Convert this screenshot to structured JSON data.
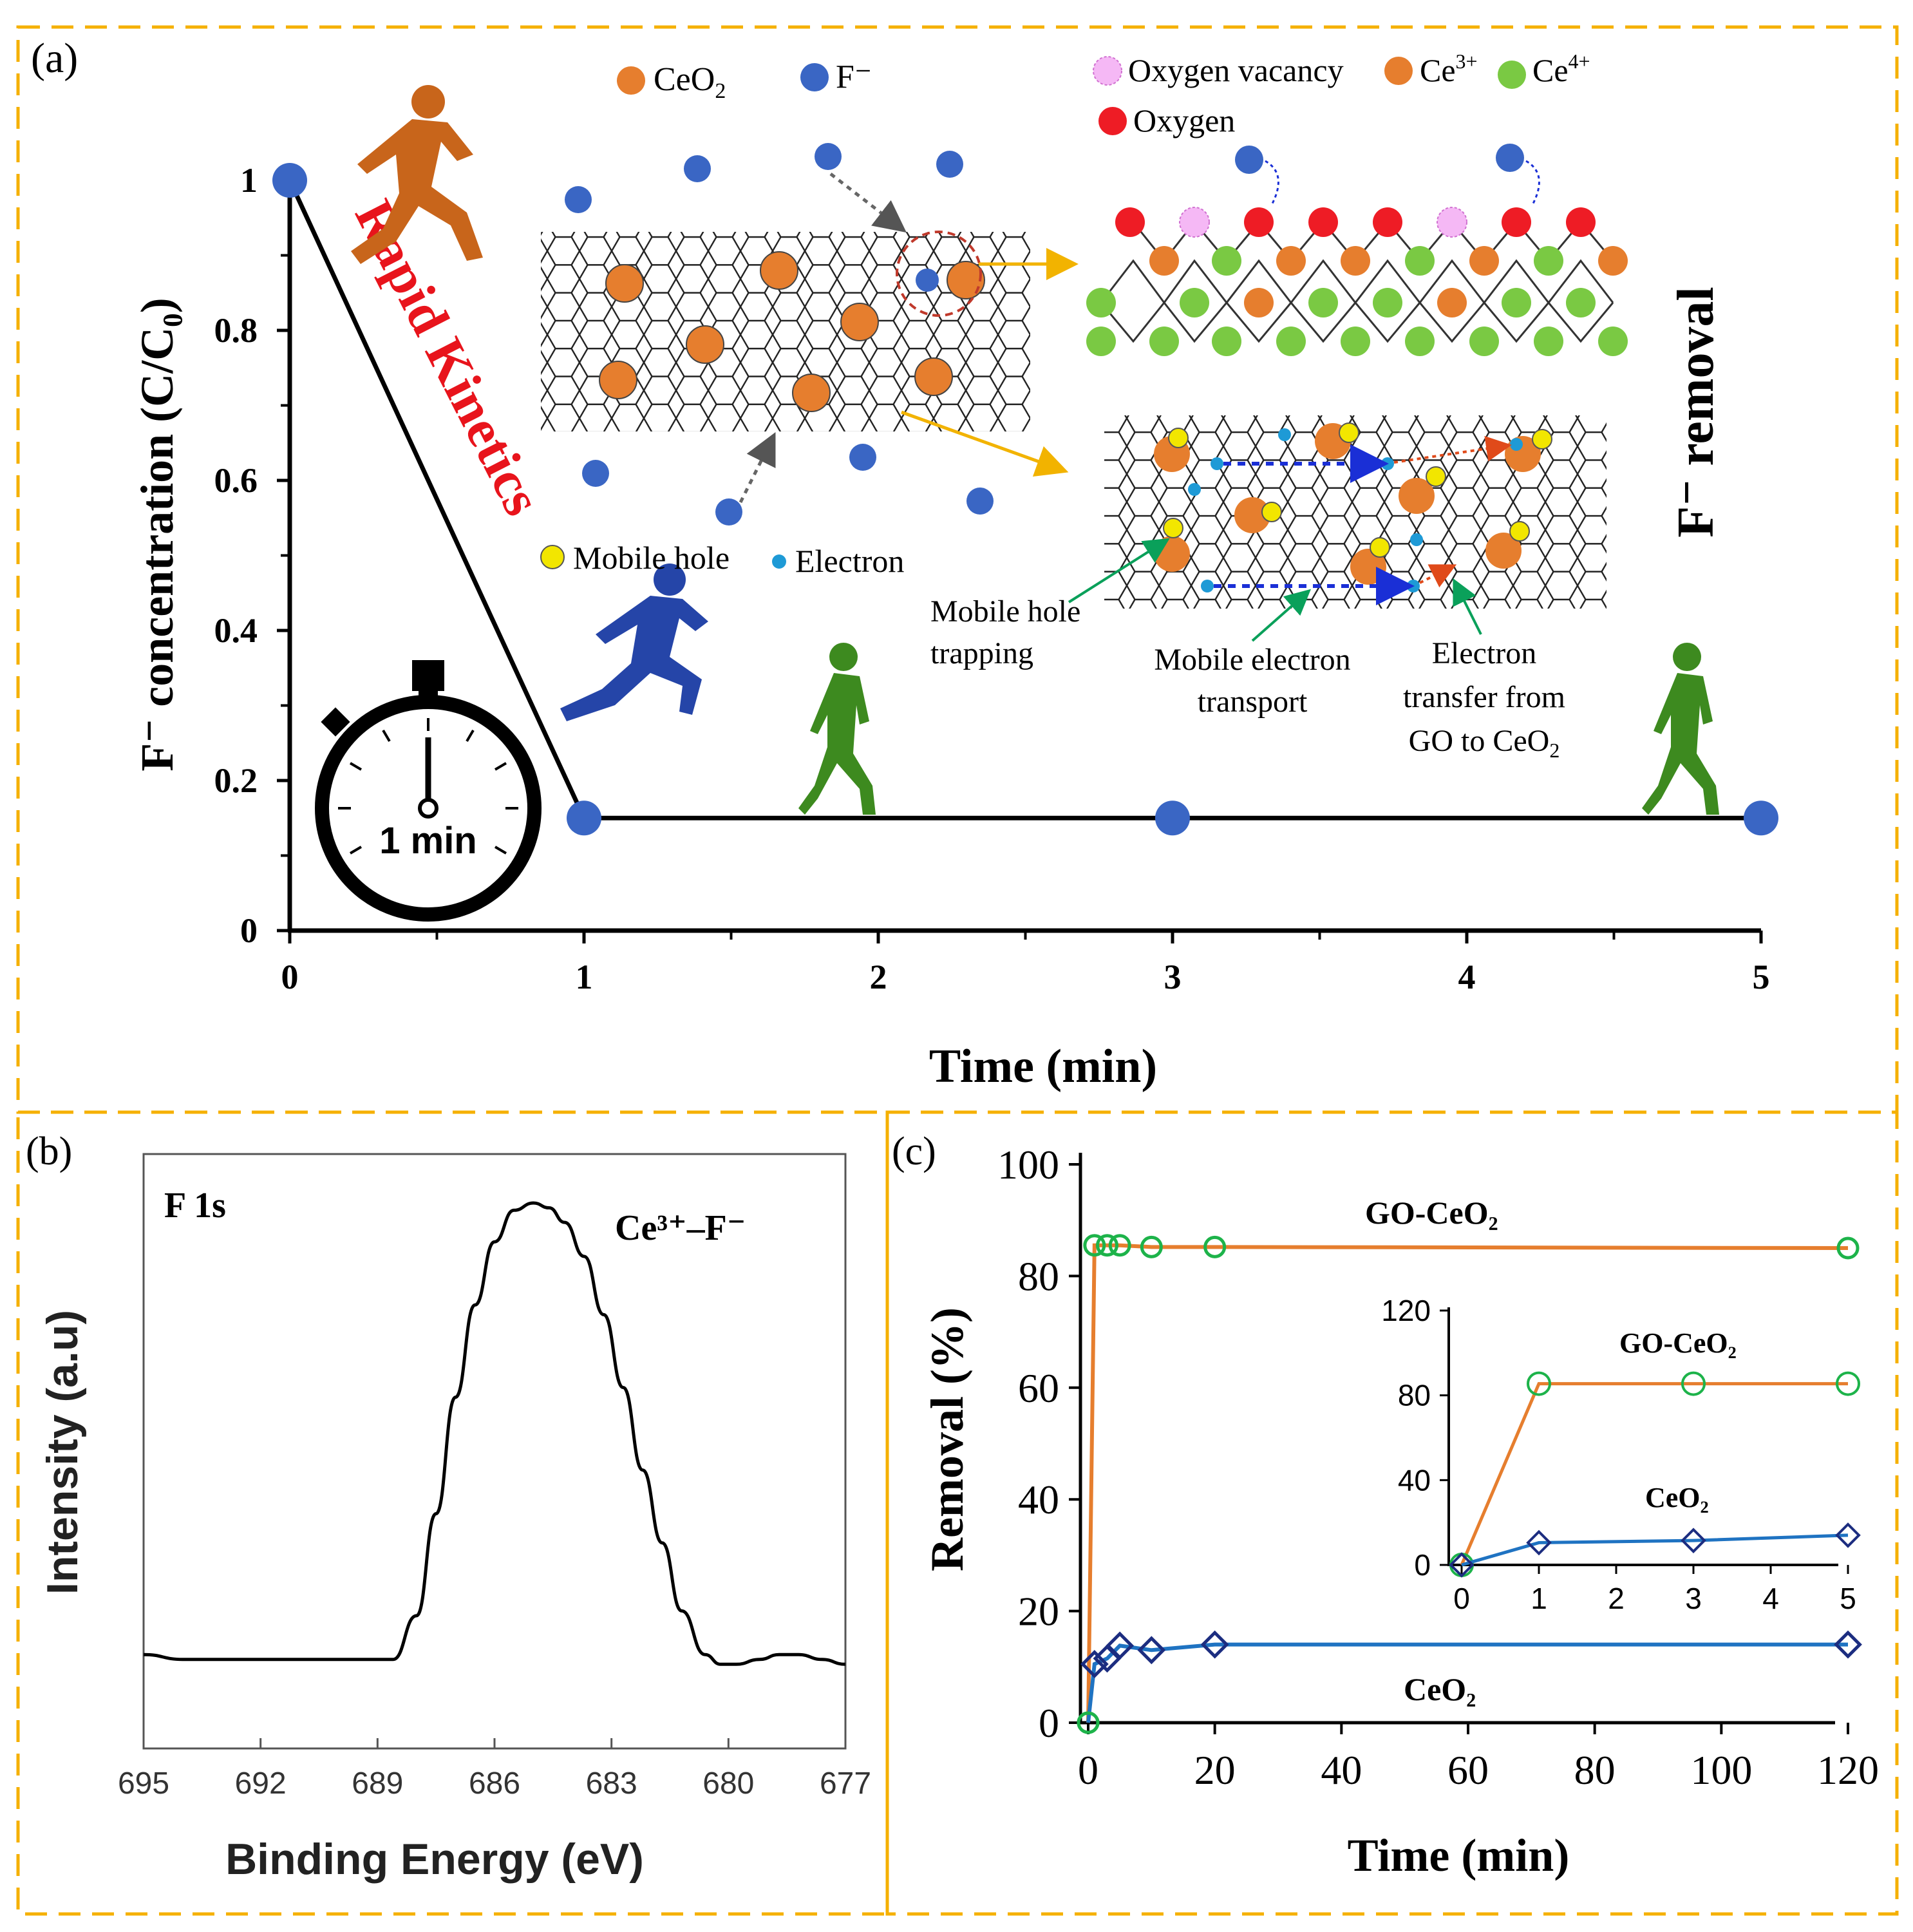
{
  "panel_a": {
    "label": "(a)",
    "rapid_kinetics": "Rapid Kinetics",
    "side_title": "F⁻ removal",
    "timer_label": "1 min",
    "legend_top": [
      {
        "key": "ceo2",
        "label": "CeO",
        "sub": "2",
        "color": "#e67e2e"
      },
      {
        "key": "fion",
        "label": "F⁻",
        "sub": "",
        "color": "#3a66c4"
      }
    ],
    "legend_lattice": [
      {
        "key": "ovac",
        "label": "Oxygen vacancy",
        "sup": "",
        "color": "#f07ef0"
      },
      {
        "key": "ce3",
        "label": "Ce",
        "sup": "3+",
        "color": "#e67e2e"
      },
      {
        "key": "ce4",
        "label": "Ce",
        "sup": "4+",
        "color": "#7ac943"
      },
      {
        "key": "oxy",
        "label": "Oxygen",
        "sup": "",
        "color": "#ee1c25"
      }
    ],
    "legend_carrier": [
      {
        "key": "hole",
        "label": "Mobile hole",
        "color": "#f2e600"
      },
      {
        "key": "electron",
        "label": "Electron",
        "color": "#1e9ad6"
      }
    ],
    "annotations": {
      "hole_trap": [
        "Mobile hole",
        "trapping"
      ],
      "e_transport": [
        "Mobile electron",
        "transport"
      ],
      "e_transfer_1": "Electron",
      "e_transfer_2": "transfer from",
      "e_transfer_3": "GO to CeO",
      "e_transfer_sub": "2"
    }
  },
  "panel_b": {
    "label": "(b)",
    "element": "F 1s",
    "peak_label": "Ce³⁺–F⁻"
  },
  "panel_c": {
    "label": "(c)"
  },
  "chart_data": [
    {
      "id": "a",
      "type": "line",
      "title": "",
      "xlabel": "Time (min)",
      "ylabel": "F⁻ concentration (C/C₀)",
      "xlim": [
        0,
        5
      ],
      "ylim": [
        0,
        1
      ],
      "xticks": [
        0,
        1,
        2,
        3,
        4,
        5
      ],
      "yticks": [
        0,
        0.2,
        0.4,
        0.6,
        0.8,
        1
      ],
      "series": [
        {
          "name": "F⁻ concentration",
          "x": [
            0,
            1,
            3,
            5
          ],
          "values": [
            1,
            0.15,
            0.15,
            0.15
          ],
          "color": "#3a66c4"
        }
      ],
      "grid": false
    },
    {
      "id": "b",
      "type": "line",
      "title": "F 1s",
      "xlabel": "Binding Energy (eV)",
      "ylabel": "Intensity (a.u)",
      "xlim": [
        695,
        677
      ],
      "ylim": [
        0,
        1
      ],
      "xticks": [
        695,
        692,
        689,
        686,
        683,
        680,
        677
      ],
      "series": [
        {
          "name": "F 1s",
          "x": [
            695,
            694,
            693,
            692,
            691,
            690,
            689,
            688.6,
            688,
            687.5,
            687,
            686.5,
            686,
            685.5,
            685,
            684.6,
            684.2,
            683.7,
            683.2,
            682.7,
            682.2,
            681.7,
            681.2,
            680.6,
            680.2,
            679.8,
            679.2,
            678.7,
            678.2,
            677.6,
            677
          ],
          "values": [
            0.07,
            0.06,
            0.06,
            0.06,
            0.06,
            0.06,
            0.06,
            0.06,
            0.15,
            0.36,
            0.6,
            0.79,
            0.92,
            0.985,
            1.0,
            0.99,
            0.96,
            0.89,
            0.77,
            0.62,
            0.45,
            0.3,
            0.16,
            0.07,
            0.05,
            0.05,
            0.06,
            0.07,
            0.07,
            0.06,
            0.05
          ],
          "color": "#000000"
        }
      ],
      "grid": false
    },
    {
      "id": "c",
      "type": "line",
      "title": "",
      "xlabel": "Time (min)",
      "ylabel": "Removal (%)",
      "xlim": [
        0,
        120
      ],
      "ylim": [
        0,
        100
      ],
      "xticks": [
        0,
        20,
        40,
        60,
        80,
        100,
        120
      ],
      "yticks": [
        0,
        20,
        40,
        60,
        80,
        100
      ],
      "series": [
        {
          "name": "GO-CeO₂",
          "x": [
            0,
            1,
            3,
            5,
            10,
            20,
            120
          ],
          "values": [
            0,
            85.5,
            85.5,
            85.5,
            85.2,
            85.2,
            85
          ],
          "color": "#e67e2e"
        },
        {
          "name": "CeO₂",
          "x": [
            0,
            1,
            3,
            5,
            10,
            20,
            120
          ],
          "values": [
            0,
            10.5,
            11.5,
            13.8,
            13,
            14,
            14
          ],
          "color": "#1f73c2"
        }
      ],
      "series_labels": [
        "GO-CeO₂",
        "CeO₂"
      ],
      "grid": false
    },
    {
      "id": "c_inset",
      "type": "line",
      "title": "",
      "xlabel": "",
      "ylabel": "",
      "xlim": [
        0,
        5
      ],
      "ylim": [
        0,
        120
      ],
      "xticks": [
        0,
        1,
        2,
        3,
        4,
        5
      ],
      "yticks": [
        0,
        40,
        80,
        120
      ],
      "series": [
        {
          "name": "GO-CeO₂",
          "x": [
            0,
            1,
            3,
            5
          ],
          "values": [
            0,
            85.5,
            85.5,
            85.5
          ],
          "color": "#e67e2e"
        },
        {
          "name": "CeO₂",
          "x": [
            0,
            1,
            3,
            5
          ],
          "values": [
            0,
            10.5,
            11.5,
            14
          ],
          "color": "#1f73c2"
        }
      ],
      "series_labels": [
        "GO-CeO₂",
        "CeO₂"
      ],
      "grid": false
    }
  ]
}
